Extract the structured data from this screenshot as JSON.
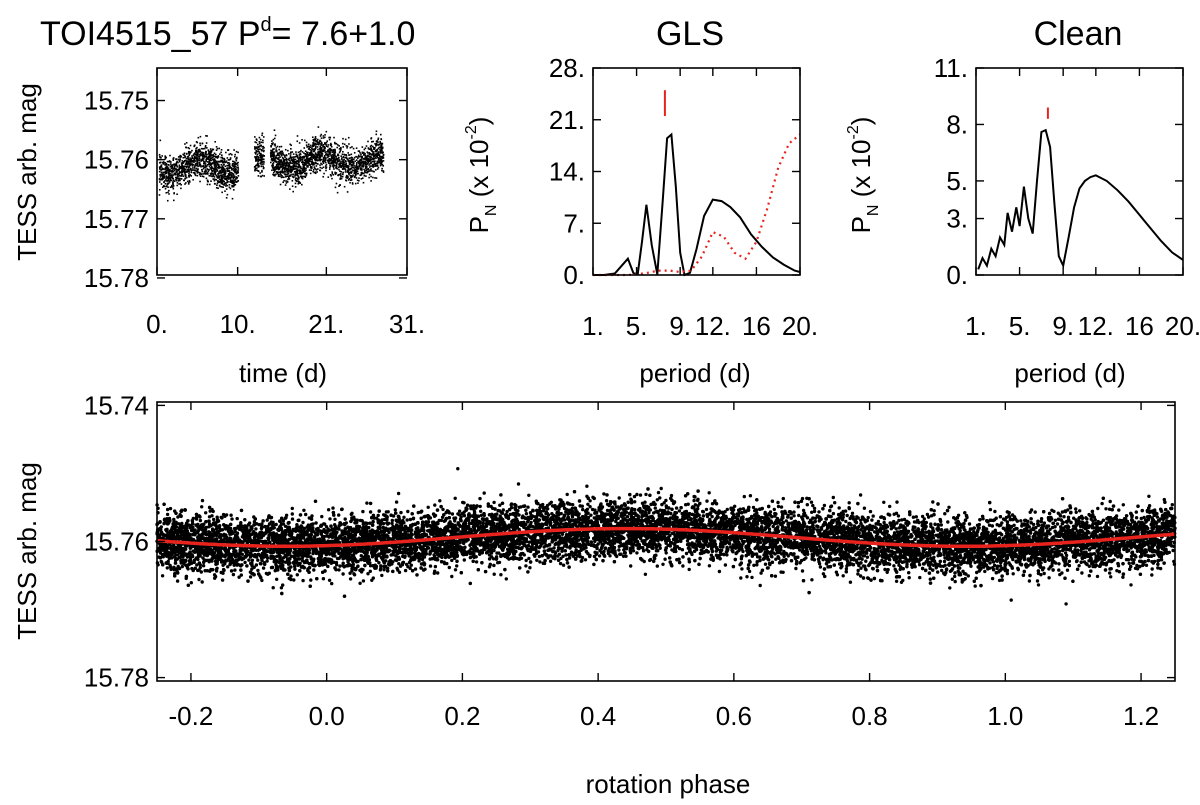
{
  "header": {
    "title_main": "TOI4515_57 P",
    "title_sup": "d",
    "title_rest": "= 7.6+1.0",
    "gls_title": "GLS",
    "clean_title": "Clean"
  },
  "chart_data": [
    {
      "id": "lightcurve",
      "type": "scatter",
      "title": "",
      "xlabel": "time (d)",
      "ylabel": "TESS arb. mag",
      "xlim": [
        0,
        31
      ],
      "ylim": [
        15.7795,
        15.7445
      ],
      "y_inverted": true,
      "xticks": [
        0,
        10,
        21,
        31
      ],
      "xtick_labels": [
        "0.",
        "10.",
        "21.",
        "31."
      ],
      "yticks": [
        15.75,
        15.76,
        15.77,
        15.78
      ],
      "ytick_labels": [
        "15.75",
        "15.76",
        "15.77",
        "15.78"
      ],
      "segments": [
        {
          "x_start": 0.2,
          "x_end": 10.0,
          "mean_mag": 15.761,
          "scatter_mag": 0.0025
        },
        {
          "x_start": 12.0,
          "x_end": 13.2,
          "mean_mag": 15.7605,
          "scatter_mag": 0.0025
        },
        {
          "x_start": 14.0,
          "x_end": 28.0,
          "mean_mag": 15.76,
          "scatter_mag": 0.0025
        }
      ]
    },
    {
      "id": "gls",
      "type": "line",
      "title": "GLS",
      "xlabel": "period (d)",
      "ylabel": "P_N (x 10^-2)",
      "xlim": [
        1,
        20
      ],
      "ylim": [
        0,
        28
      ],
      "xticks": [
        1,
        5,
        9,
        12,
        16,
        20
      ],
      "xtick_labels": [
        "1.",
        "5.",
        "9.",
        "12.",
        "16",
        "20."
      ],
      "yticks": [
        0,
        7,
        14,
        21,
        28
      ],
      "ytick_labels": [
        "0.",
        "7.",
        "14.",
        "21.",
        "28."
      ],
      "peak_marker": {
        "x": 7.6,
        "y_range": [
          21.5,
          25
        ]
      },
      "series": [
        {
          "color": "#000000",
          "style": "solid",
          "x": [
            1.0,
            2.0,
            3.0,
            4.2,
            4.7,
            5.1,
            5.5,
            5.9,
            6.4,
            6.9,
            7.4,
            7.8,
            8.2,
            8.6,
            9.0,
            9.4,
            9.9,
            10.5,
            11.2,
            12.0,
            12.8,
            13.6,
            14.5,
            15.5,
            16.5,
            17.5,
            18.5,
            19.5,
            20.0
          ],
          "y": [
            0,
            0,
            0.2,
            2.2,
            0.3,
            0.1,
            4.5,
            9.5,
            4.0,
            0.1,
            10.0,
            18.5,
            19.0,
            12.0,
            3.0,
            0.0,
            0.3,
            3.5,
            8.0,
            10.2,
            10.0,
            9.2,
            7.8,
            5.5,
            3.8,
            2.4,
            1.4,
            0.6,
            0.4
          ]
        },
        {
          "color": "#e8231e",
          "style": "dotted",
          "x": [
            1.0,
            2.0,
            3.0,
            4.0,
            5.0,
            6.0,
            7.0,
            8.0,
            9.0,
            10.0,
            11.0,
            12.0,
            13.0,
            14.0,
            15.0,
            16.0,
            17.0,
            18.0,
            19.0,
            20.0
          ],
          "y": [
            0,
            0,
            0,
            0,
            0.1,
            0.3,
            0.6,
            0.6,
            0.4,
            0.6,
            2.5,
            5.8,
            5.2,
            3.0,
            2.2,
            4.5,
            9.0,
            14.5,
            17.8,
            19.0
          ]
        }
      ]
    },
    {
      "id": "clean",
      "type": "line",
      "title": "Clean",
      "xlabel": "period (d)",
      "ylabel": "P_N (x 10^-2)",
      "xlim": [
        1,
        20
      ],
      "ylim": [
        0,
        11
      ],
      "xticks": [
        1,
        5,
        9,
        12,
        16,
        20
      ],
      "xtick_labels": [
        "1.",
        "5.",
        "9.",
        "12.",
        "16",
        "20."
      ],
      "yticks": [
        0,
        3,
        5,
        8,
        11
      ],
      "ytick_labels": [
        "0.",
        "3.",
        "5.",
        "8.",
        "11."
      ],
      "peak_marker": {
        "x": 7.6,
        "y_range": [
          8.3,
          8.9
        ]
      },
      "series": [
        {
          "color": "#000000",
          "style": "solid",
          "x": [
            1.2,
            1.6,
            2.0,
            2.4,
            2.8,
            3.2,
            3.6,
            3.9,
            4.3,
            4.7,
            5.0,
            5.4,
            5.8,
            6.2,
            6.6,
            7.0,
            7.4,
            7.8,
            8.2,
            8.6,
            9.0,
            9.5,
            10.0,
            10.5,
            11.0,
            11.5,
            12.0,
            13.0,
            14.0,
            15.0,
            16.0,
            17.0,
            18.0,
            19.0,
            20.0
          ],
          "y": [
            0.3,
            0.9,
            0.5,
            1.4,
            1.0,
            2.0,
            1.6,
            3.3,
            2.3,
            3.6,
            2.6,
            4.7,
            3.0,
            2.2,
            5.0,
            7.6,
            7.7,
            6.8,
            3.8,
            1.0,
            0.5,
            2.0,
            3.6,
            4.6,
            5.0,
            5.2,
            5.3,
            5.0,
            4.5,
            3.9,
            3.2,
            2.5,
            1.8,
            1.2,
            0.8
          ]
        }
      ]
    },
    {
      "id": "phase",
      "type": "scatter",
      "title": "",
      "xlabel": "rotation phase",
      "ylabel": "TESS arb. mag",
      "xlim": [
        -0.25,
        1.25
      ],
      "ylim": [
        15.7805,
        15.7395
      ],
      "y_inverted": true,
      "xticks": [
        -0.2,
        0.0,
        0.2,
        0.4,
        0.6,
        0.8,
        1.0,
        1.2
      ],
      "xtick_labels": [
        "-0.2",
        "0.0",
        "0.2",
        "0.4",
        "0.6",
        "0.8",
        "1.0",
        "1.2"
      ],
      "yticks": [
        15.74,
        15.76,
        15.78
      ],
      "ytick_labels": [
        "15.74",
        "15.76",
        "15.78"
      ],
      "model": {
        "color": "#e8231e",
        "mean_mag": 15.7594,
        "amplitude_mag": 0.0013,
        "phase_of_min_mag": 0.44
      },
      "scatter_mag": 0.0028
    }
  ]
}
